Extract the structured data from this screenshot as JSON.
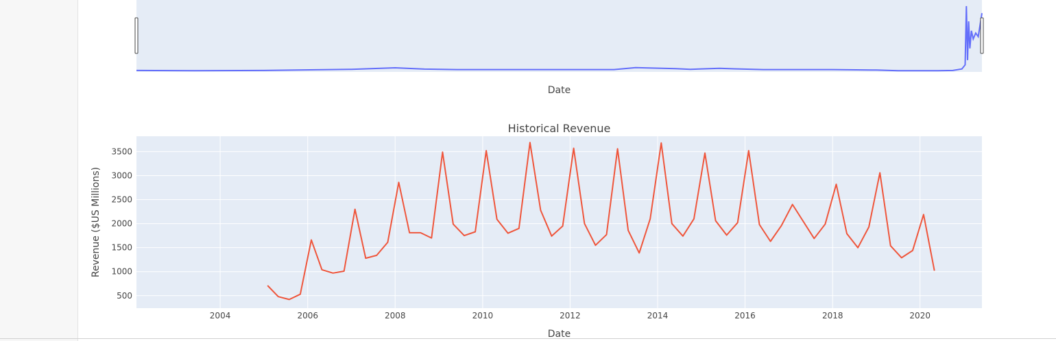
{
  "colors": {
    "plot_bg": "#e5ecf6",
    "grid": "#ffffff",
    "overview_line": "#636efa",
    "revenue_line": "#ef553b",
    "text": "#444444"
  },
  "overview": {
    "xlabel": "Date"
  },
  "chart_data": [
    {
      "type": "line",
      "role": "range-slider-overview",
      "title": "",
      "xlabel": "Date",
      "ylabel": "",
      "grid": false,
      "xlim": [
        "2002-02-01",
        "2021-06-01"
      ],
      "ylim": [
        0,
        60
      ],
      "x": [
        "2002-02-01",
        "2003-06-01",
        "2005-01-01",
        "2007-01-01",
        "2008-01-01",
        "2008-09-01",
        "2009-06-01",
        "2011-01-01",
        "2013-01-01",
        "2013-07-01",
        "2014-06-01",
        "2014-10-01",
        "2015-06-01",
        "2015-10-01",
        "2016-06-01",
        "2018-01-01",
        "2019-01-01",
        "2019-07-01",
        "2020-06-01",
        "2020-10-01",
        "2020-12-15",
        "2021-01-12",
        "2021-01-22",
        "2021-02-01",
        "2021-02-10",
        "2021-02-20",
        "2021-03-05",
        "2021-03-20",
        "2021-04-10",
        "2021-05-01",
        "2021-06-01"
      ],
      "y": [
        1.2,
        1.0,
        1.2,
        2.2,
        3.5,
        2.4,
        2.0,
        2.0,
        2.0,
        3.6,
        2.8,
        2.2,
        3.0,
        2.6,
        2.0,
        2.0,
        1.6,
        1.0,
        1.0,
        1.2,
        2.5,
        6.0,
        56.0,
        10.0,
        43.0,
        20.0,
        35.0,
        28.0,
        33.0,
        30.0,
        50.0
      ]
    },
    {
      "type": "line",
      "title": "Historical Revenue",
      "xlabel": "Date",
      "ylabel": "Revenue ($US Millions)",
      "grid": true,
      "legend": "none",
      "xlim": [
        "2002-02-01",
        "2021-06-01"
      ],
      "ylim": [
        240,
        3820
      ],
      "x_ticks": [
        "2004",
        "2006",
        "2008",
        "2010",
        "2012",
        "2014",
        "2016",
        "2018",
        "2020"
      ],
      "y_ticks": [
        500,
        1000,
        1500,
        2000,
        2500,
        3000,
        3500
      ],
      "x": [
        "2005-01-31",
        "2005-04-30",
        "2005-07-31",
        "2005-10-31",
        "2006-01-31",
        "2006-04-30",
        "2006-07-31",
        "2006-10-31",
        "2007-01-31",
        "2007-04-30",
        "2007-07-31",
        "2007-10-31",
        "2008-01-31",
        "2008-04-30",
        "2008-07-31",
        "2008-10-31",
        "2009-01-31",
        "2009-04-30",
        "2009-07-31",
        "2009-10-31",
        "2010-01-31",
        "2010-04-30",
        "2010-07-31",
        "2010-10-31",
        "2011-01-31",
        "2011-04-30",
        "2011-07-31",
        "2011-10-31",
        "2012-01-31",
        "2012-04-30",
        "2012-07-31",
        "2012-10-31",
        "2013-01-31",
        "2013-04-30",
        "2013-07-31",
        "2013-10-31",
        "2014-01-31",
        "2014-04-30",
        "2014-07-31",
        "2014-10-31",
        "2015-01-31",
        "2015-04-30",
        "2015-07-31",
        "2015-10-31",
        "2016-01-31",
        "2016-04-30",
        "2016-07-31",
        "2016-10-31",
        "2017-01-31",
        "2017-07-31",
        "2017-10-31",
        "2018-01-31",
        "2018-04-30",
        "2018-07-31",
        "2018-10-31",
        "2019-01-31",
        "2019-04-30",
        "2019-07-31",
        "2019-10-31",
        "2020-01-31",
        "2020-04-30"
      ],
      "y": [
        710,
        480,
        420,
        530,
        1660,
        1040,
        970,
        1010,
        2300,
        1280,
        1340,
        1610,
        2860,
        1810,
        1810,
        1700,
        3490,
        1990,
        1750,
        1830,
        3520,
        2090,
        1800,
        1900,
        3690,
        2280,
        1740,
        1950,
        3570,
        2000,
        1550,
        1770,
        3560,
        1860,
        1390,
        2100,
        3680,
        2000,
        1740,
        2100,
        3470,
        2060,
        1760,
        2020,
        3520,
        1980,
        1630,
        1960,
        2400,
        1690,
        1990,
        2820,
        1790,
        1500,
        1930,
        3060,
        1540,
        1290,
        1440,
        2190,
        1020
      ]
    }
  ]
}
